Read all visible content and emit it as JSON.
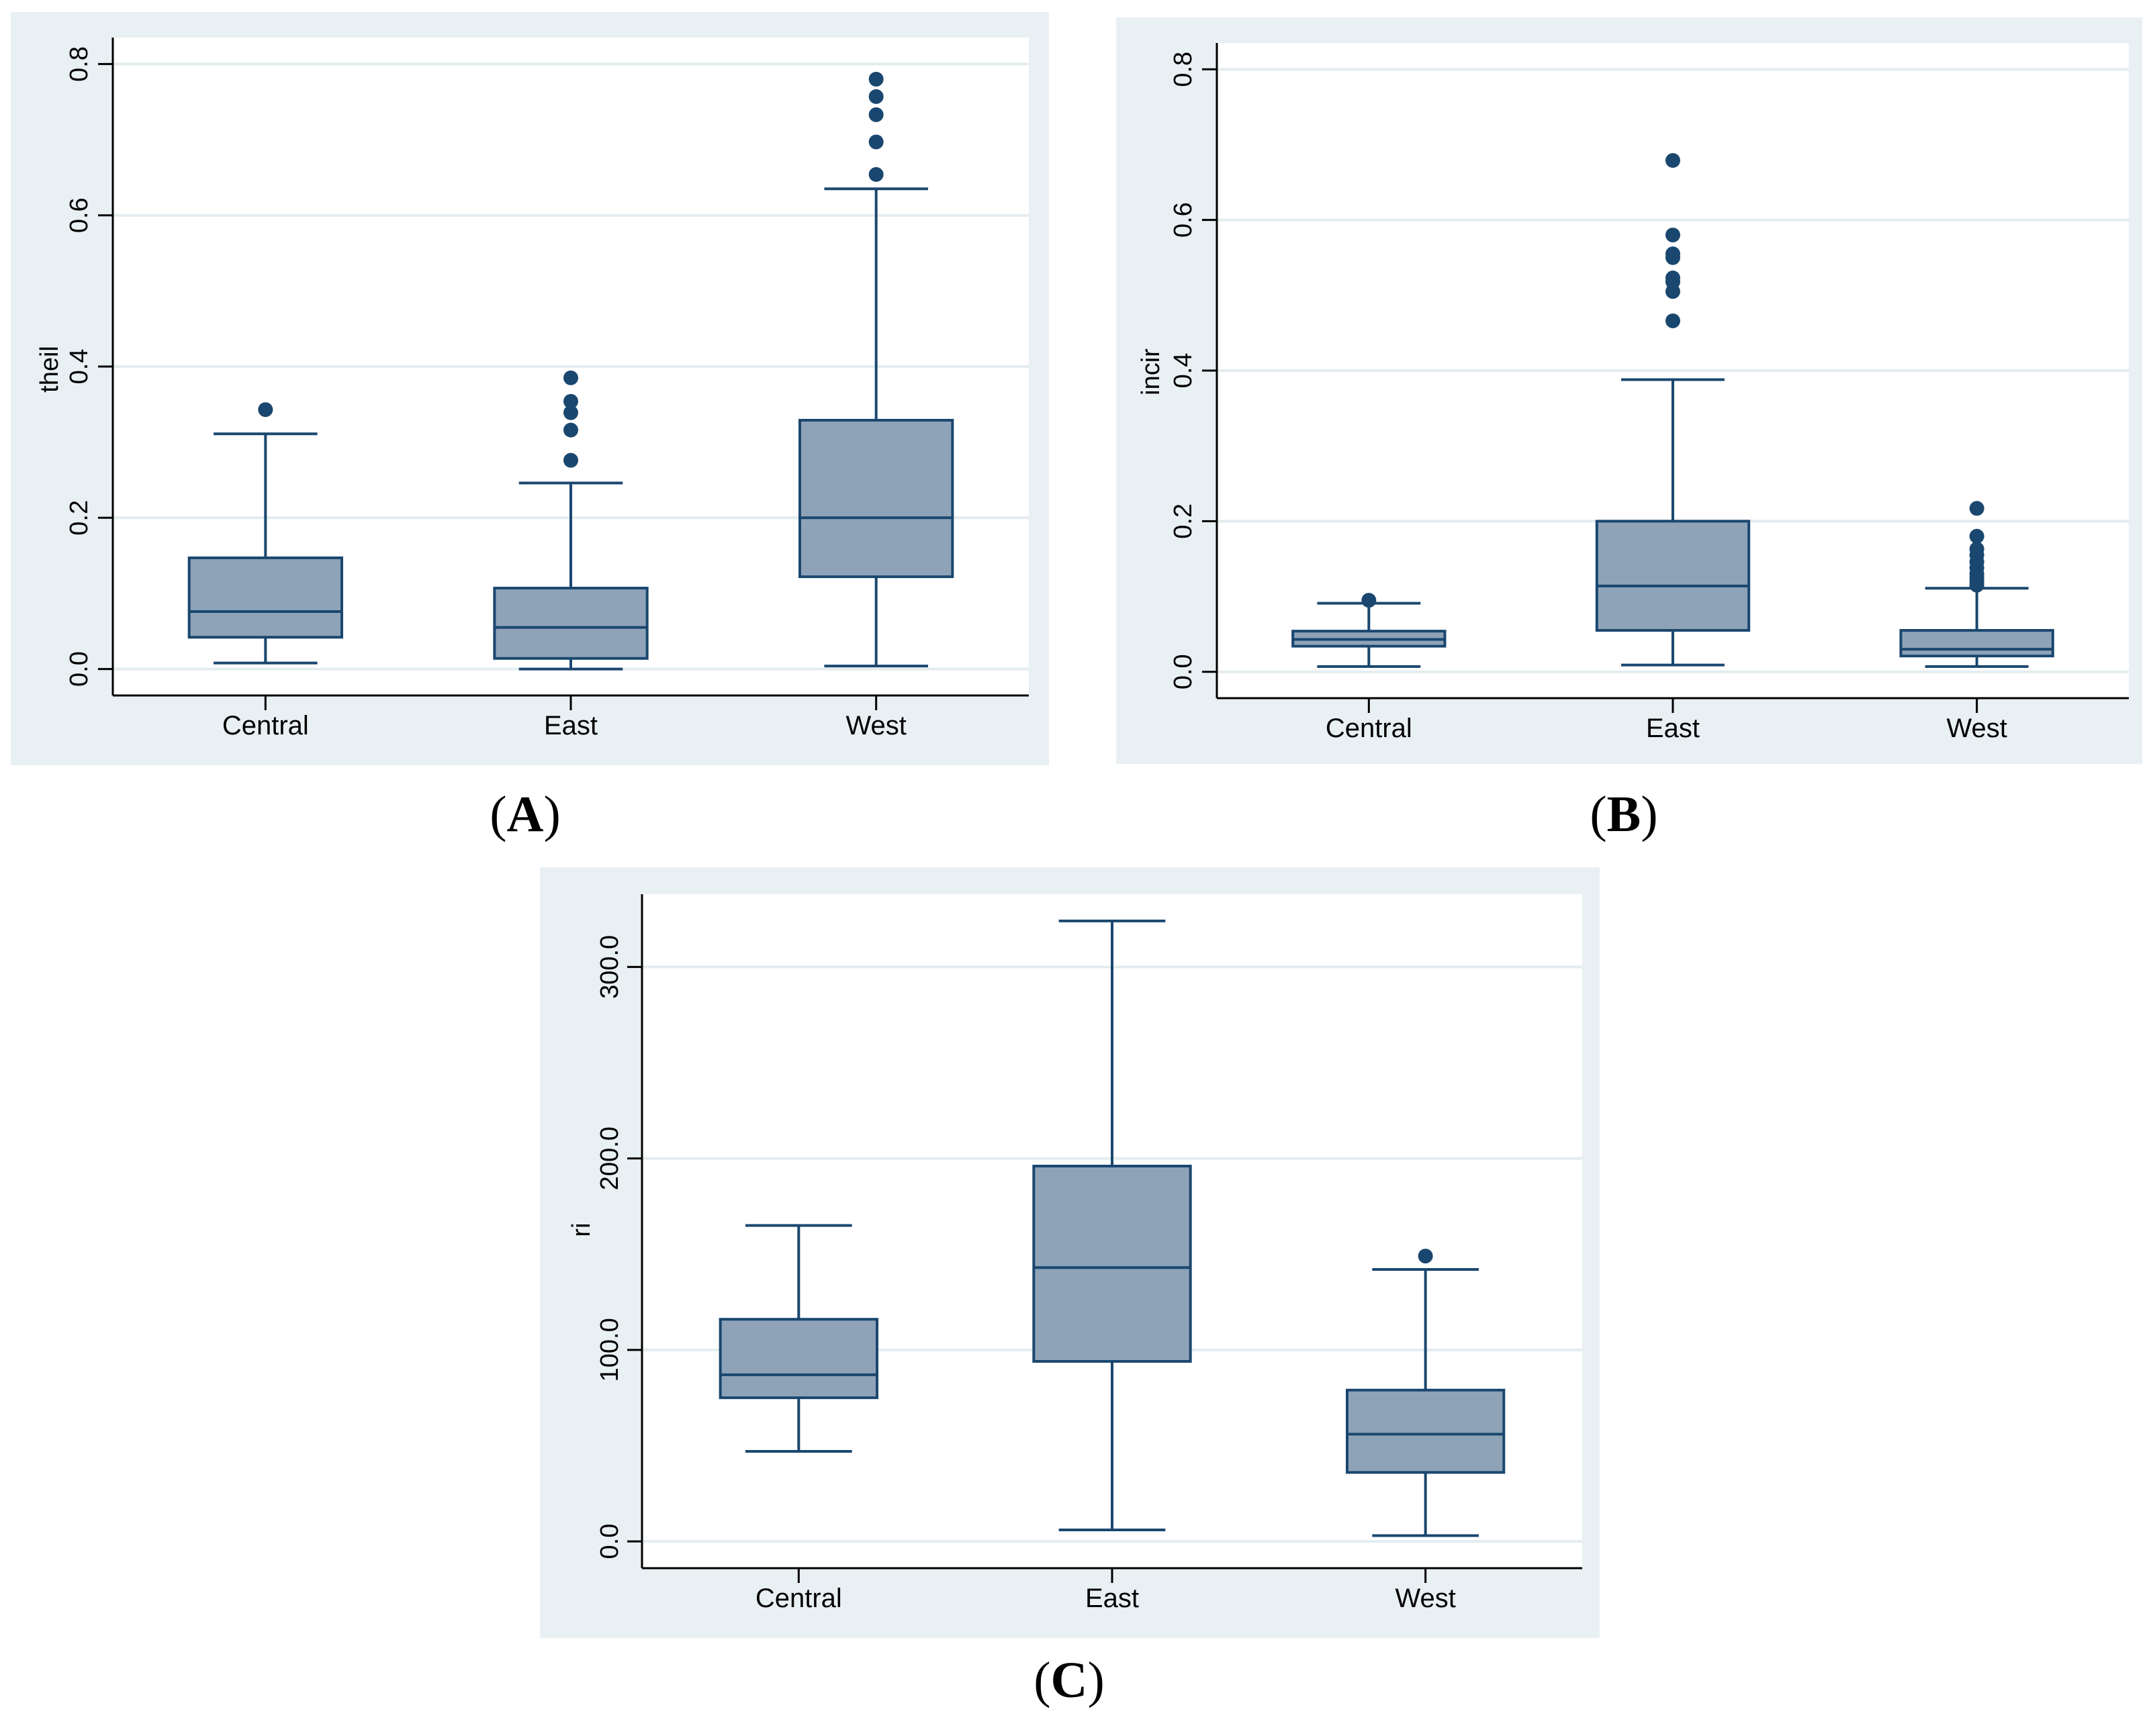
{
  "colors": {
    "panel_bg": "#e9f0f3",
    "plot_bg": "#ffffff",
    "grid": "#e3ecef",
    "box_fill": "#8fa3b8",
    "line": "#1a476f",
    "axis": "#000000",
    "text": "#000000"
  },
  "captions": {
    "a": {
      "open": "(",
      "letter": "A",
      "close": ")"
    },
    "b": {
      "open": "(",
      "letter": "B",
      "close": ")"
    },
    "c": {
      "open": "(",
      "letter": "C",
      "close": ")"
    }
  },
  "chart_data": [
    {
      "id": "A",
      "type": "box",
      "ylabel": "theil",
      "categories": [
        "Central",
        "East",
        "West"
      ],
      "ylim": [
        -0.035,
        0.835
      ],
      "yticks": [
        0.0,
        0.2,
        0.4,
        0.6,
        0.8
      ],
      "ytick_labels": [
        "0.0",
        "0.2",
        "0.4",
        "0.6",
        "0.8"
      ],
      "grid": true,
      "boxes": [
        {
          "category": "Central",
          "whisker_low": 0.008,
          "q1": 0.042,
          "median": 0.076,
          "q3": 0.147,
          "whisker_high": 0.311,
          "outliers": [
            0.343
          ]
        },
        {
          "category": "East",
          "whisker_low": 0.0,
          "q1": 0.014,
          "median": 0.055,
          "q3": 0.107,
          "whisker_high": 0.246,
          "outliers": [
            0.276,
            0.316,
            0.339,
            0.354,
            0.385
          ]
        },
        {
          "category": "West",
          "whisker_low": 0.004,
          "q1": 0.122,
          "median": 0.2,
          "q3": 0.329,
          "whisker_high": 0.635,
          "outliers": [
            0.654,
            0.697,
            0.733,
            0.757,
            0.78
          ]
        }
      ]
    },
    {
      "id": "B",
      "type": "box",
      "ylabel": "incir",
      "categories": [
        "Central",
        "East",
        "West"
      ],
      "ylim": [
        -0.035,
        0.835
      ],
      "yticks": [
        0.0,
        0.2,
        0.4,
        0.6,
        0.8
      ],
      "ytick_labels": [
        "0.0",
        "0.2",
        "0.4",
        "0.6",
        "0.8"
      ],
      "grid": true,
      "boxes": [
        {
          "category": "Central",
          "whisker_low": 0.007,
          "q1": 0.034,
          "median": 0.043,
          "q3": 0.054,
          "whisker_high": 0.091,
          "outliers": [
            0.095
          ]
        },
        {
          "category": "East",
          "whisker_low": 0.009,
          "q1": 0.055,
          "median": 0.114,
          "q3": 0.2,
          "whisker_high": 0.388,
          "outliers": [
            0.466,
            0.505,
            0.518,
            0.523,
            0.55,
            0.555,
            0.58,
            0.679
          ]
        },
        {
          "category": "West",
          "whisker_low": 0.007,
          "q1": 0.021,
          "median": 0.03,
          "q3": 0.055,
          "whisker_high": 0.111,
          "outliers": [
            0.115,
            0.12,
            0.125,
            0.13,
            0.138,
            0.146,
            0.155,
            0.163,
            0.18,
            0.217
          ]
        }
      ]
    },
    {
      "id": "C",
      "type": "box",
      "ylabel": "ri",
      "categories": [
        "Central",
        "East",
        "West"
      ],
      "ylim": [
        -14,
        338
      ],
      "yticks": [
        0,
        100,
        200,
        300
      ],
      "ytick_labels": [
        "0.0",
        "100.0",
        "200.0",
        "300.0"
      ],
      "grid": true,
      "boxes": [
        {
          "category": "Central",
          "whisker_low": 47,
          "q1": 75,
          "median": 87,
          "q3": 116,
          "whisker_high": 165,
          "outliers": []
        },
        {
          "category": "East",
          "whisker_low": 6,
          "q1": 94,
          "median": 143,
          "q3": 196,
          "whisker_high": 324,
          "outliers": []
        },
        {
          "category": "West",
          "whisker_low": 3,
          "q1": 36,
          "median": 56,
          "q3": 79,
          "whisker_high": 142,
          "outliers": [
            149
          ]
        }
      ]
    }
  ]
}
